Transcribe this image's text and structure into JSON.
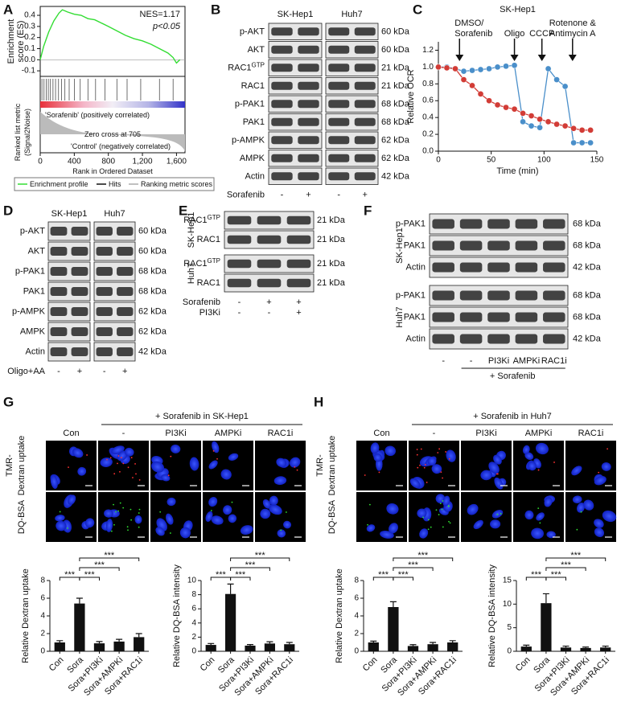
{
  "letters": [
    "A",
    "B",
    "C",
    "D",
    "E",
    "F",
    "G",
    "H"
  ],
  "chart_data": [
    {
      "type": "gsea",
      "ylabel": [
        "Enrichment",
        "score (ES)"
      ],
      "lower_ylabel": [
        "Ranked list metric",
        "(Signal2Noise)"
      ],
      "xlabel": "Rank in Ordered Dataset",
      "x": [
        0,
        40,
        100,
        160,
        220,
        260,
        320,
        400,
        480,
        560,
        640,
        720,
        800,
        900,
        1000,
        1100,
        1200,
        1300,
        1400,
        1500,
        1560,
        1600,
        1640
      ],
      "series": [
        {
          "name": "Enrichment profile",
          "color": "#33dd33",
          "values": [
            0,
            0.12,
            0.25,
            0.35,
            0.42,
            0.45,
            0.43,
            0.41,
            0.4,
            0.37,
            0.36,
            0.33,
            0.3,
            0.26,
            0.22,
            0.19,
            0.17,
            0.14,
            0.1,
            0.06,
            0.02,
            -0.03,
            0
          ]
        }
      ],
      "hits": [
        20,
        45,
        70,
        95,
        120,
        150,
        180,
        215,
        250,
        290,
        340,
        400,
        470,
        560,
        650,
        760,
        900,
        1020,
        1180,
        1400,
        1560
      ],
      "hits_name": "Hits",
      "metric_name": "Ranking metric scores",
      "xlim": [
        0,
        1700
      ],
      "xticks": [
        0,
        400,
        800,
        {
          "value": 1200,
          "label": "1,200"
        },
        {
          "value": 1600,
          "label": "1,600"
        }
      ],
      "ylim": [
        -0.15,
        0.48
      ],
      "yticks": [
        {
          "value": -0.1,
          "label": "-0.1"
        },
        {
          "value": 0,
          "label": "0.0"
        },
        0.1,
        0.2,
        0.3,
        0.4
      ],
      "annotations": {
        "nes": "NES=1.17",
        "p": "p<0.05",
        "positive": "'Sorafenib' (positively correlated)",
        "zero": "Zero cross at 705",
        "negative": "'Control' (negatively correlated)"
      }
    },
    {
      "type": "line",
      "title": "SK-Hep1",
      "xlabel": "Time (min)",
      "ylabel": "Relative OCR",
      "x": [
        0,
        8,
        16,
        24,
        32,
        40,
        48,
        56,
        64,
        72,
        80,
        88,
        96,
        104,
        112,
        120,
        128,
        136,
        144
      ],
      "series": [
        {
          "name": "DMSO/",
          "color": "#4a8fca",
          "values": [
            1.0,
            1.0,
            0.98,
            0.95,
            0.96,
            0.97,
            0.98,
            1.0,
            1.01,
            1.02,
            0.35,
            0.3,
            0.28,
            0.98,
            0.85,
            0.77,
            0.1,
            0.1,
            0.1
          ]
        },
        {
          "name": "Sorafenib",
          "color": "#d23c36",
          "values": [
            1.0,
            0.99,
            0.98,
            0.85,
            0.78,
            0.68,
            0.6,
            0.55,
            0.52,
            0.5,
            0.45,
            0.42,
            0.38,
            0.35,
            0.32,
            0.3,
            0.27,
            0.25,
            0.25
          ]
        }
      ],
      "xlim": [
        0,
        150
      ],
      "xticks": [
        0,
        50,
        100,
        150
      ],
      "ylim": [
        0,
        1.3
      ],
      "yticks": [
        {
          "value": 0,
          "label": "0.0"
        },
        0.2,
        0.4,
        0.6,
        0.8,
        {
          "value": 1,
          "label": "1.0"
        },
        1.2
      ],
      "treatments": [
        {
          "x": 20
        },
        {
          "x": 72,
          "label": [
            "Oligo"
          ]
        },
        {
          "x": 98,
          "label": [
            "CCCP"
          ]
        },
        {
          "x": 127,
          "label": [
            "Rotenone &",
            "Antimycin A"
          ]
        }
      ]
    },
    {
      "type": "bar",
      "ylabel": "Relative Dextran uptake",
      "categories": [
        "Con",
        "Sora",
        "Sora+PI3Ki",
        "Sora+AMPKi",
        "Sora+RAC1i"
      ],
      "values": [
        1.0,
        5.4,
        0.9,
        1.1,
        1.6
      ],
      "errors": [
        0.2,
        0.6,
        0.2,
        0.25,
        0.4
      ],
      "color": "#111111",
      "ylim": [
        0,
        8
      ],
      "yticks": [
        0,
        2,
        4,
        6,
        8
      ],
      "significance": [
        {
          "pair": [
            0,
            1
          ],
          "label": "***"
        },
        {
          "pair": [
            1,
            2
          ],
          "label": "***"
        },
        {
          "pair": [
            1,
            3
          ],
          "label": "***"
        },
        {
          "pair": [
            1,
            4
          ],
          "label": "***"
        }
      ]
    },
    {
      "type": "bar",
      "ylabel": "Relative DQ-BSA intensity",
      "categories": [
        "Con",
        "Sora",
        "Sora+PI3Ki",
        "Sora+AMPKi",
        "Sora+RAC1i"
      ],
      "values": [
        0.9,
        8.1,
        0.8,
        1.1,
        1.0
      ],
      "errors": [
        0.2,
        1.4,
        0.15,
        0.25,
        0.25
      ],
      "color": "#111111",
      "ylim": [
        0,
        10
      ],
      "yticks": [
        0,
        2,
        4,
        6,
        8,
        10
      ],
      "significance": [
        {
          "pair": [
            0,
            1
          ],
          "label": "***"
        },
        {
          "pair": [
            1,
            2
          ],
          "label": "***"
        },
        {
          "pair": [
            1,
            3
          ],
          "label": "***"
        },
        {
          "pair": [
            1,
            4
          ],
          "label": "***"
        }
      ]
    },
    {
      "type": "bar",
      "ylabel": "Relative Dextran uptake",
      "categories": [
        "Con",
        "Sora",
        "Sora+PI3Ki",
        "Sora+AMPKi",
        "Sora+RAC1i"
      ],
      "values": [
        1.0,
        5.0,
        0.6,
        0.8,
        1.0
      ],
      "errors": [
        0.15,
        0.6,
        0.15,
        0.2,
        0.2
      ],
      "color": "#111111",
      "ylim": [
        0,
        8
      ],
      "yticks": [
        0,
        2,
        4,
        6,
        8
      ],
      "significance": [
        {
          "pair": [
            0,
            1
          ],
          "label": "***"
        },
        {
          "pair": [
            1,
            2
          ],
          "label": "***"
        },
        {
          "pair": [
            1,
            3
          ],
          "label": "***"
        },
        {
          "pair": [
            1,
            4
          ],
          "label": "***"
        }
      ]
    },
    {
      "type": "bar",
      "ylabel": "Relative DQ-BSA intensity",
      "categories": [
        "Con",
        "Sora",
        "Sora+PI3Ki",
        "Sora+AMPKi",
        "Sora+RAC1i"
      ],
      "values": [
        1.0,
        10.2,
        0.8,
        0.7,
        0.8
      ],
      "errors": [
        0.3,
        2.0,
        0.3,
        0.2,
        0.3
      ],
      "color": "#111111",
      "ylim": [
        0,
        15
      ],
      "yticks": [
        0,
        5,
        10,
        15
      ],
      "significance": [
        {
          "pair": [
            0,
            1
          ],
          "label": "***"
        },
        {
          "pair": [
            1,
            2
          ],
          "label": "***"
        },
        {
          "pair": [
            1,
            3
          ],
          "label": "***"
        },
        {
          "pair": [
            1,
            4
          ],
          "label": "***"
        }
      ]
    }
  ],
  "blots": [
    {
      "cells": [
        "SK-Hep1",
        "Huh7"
      ],
      "blocks": [
        {
          "rows": [
            {
              "label": "p-AKT",
              "kda": "60 kDa"
            },
            {
              "label": "AKT",
              "kda": "60 kDa"
            },
            {
              "label": "RAC1",
              "sup": "GTP",
              "kda": "21 kDa"
            },
            {
              "label": "RAC1",
              "kda": "21 kDa"
            },
            {
              "label": "p-PAK1",
              "kda": "68 kDa"
            },
            {
              "label": "PAK1",
              "kda": "68 kDa"
            },
            {
              "label": "p-AMPK",
              "kda": "62 kDa"
            },
            {
              "label": "AMPK",
              "kda": "62 kDa"
            },
            {
              "label": "Actin",
              "kda": "42 kDa"
            }
          ]
        }
      ],
      "treatments": [
        {
          "label": "Sorafenib",
          "signs": [
            "-",
            "+",
            "-",
            "+"
          ]
        }
      ]
    },
    {
      "cells": [
        "SK-Hep1",
        "Huh7"
      ],
      "blocks": [
        {
          "rows": [
            {
              "label": "p-AKT",
              "kda": "60 kDa"
            },
            {
              "label": "AKT",
              "kda": "60 kDa"
            },
            {
              "label": "p-PAK1",
              "kda": "68 kDa"
            },
            {
              "label": "PAK1",
              "kda": "68 kDa"
            },
            {
              "label": "p-AMPK",
              "kda": "62 kDa"
            },
            {
              "label": "AMPK",
              "kda": "62 kDa"
            },
            {
              "label": "Actin",
              "kda": "42 kDa"
            }
          ]
        }
      ],
      "treatments": [
        {
          "label": "Oligo+AA",
          "signs": [
            "-",
            "+",
            "-",
            "+"
          ]
        }
      ]
    },
    {
      "blocks": [
        {
          "side": "SK-Hep1",
          "rows": [
            {
              "label": "RAC1",
              "sup": "GTP",
              "kda": "21 kDa"
            },
            {
              "label": "RAC1",
              "kda": "21 kDa"
            }
          ]
        },
        {
          "side": "Huh7",
          "rows": [
            {
              "label": "RAC1",
              "sup": "GTP",
              "kda": "21 kDa"
            },
            {
              "label": "RAC1",
              "kda": "21 kDa"
            }
          ]
        }
      ],
      "treatments": [
        {
          "label": "Sorafenib",
          "signs": [
            "-",
            "+",
            "+"
          ]
        },
        {
          "label": "PI3Ki",
          "signs": [
            "-",
            "-",
            "+"
          ]
        }
      ]
    },
    {
      "blocks": [
        {
          "side": "SK-Hep1",
          "rows": [
            {
              "label": "p-PAK1",
              "kda": "68 kDa"
            },
            {
              "label": "PAK1",
              "kda": "68 kDa"
            },
            {
              "label": "Actin",
              "kda": "42 kDa"
            }
          ]
        },
        {
          "side": "Huh7",
          "rows": [
            {
              "label": "p-PAK1",
              "kda": "68 kDa"
            },
            {
              "label": "PAK1",
              "kda": "68 kDa"
            },
            {
              "label": "Actin",
              "kda": "42 kDa"
            }
          ]
        }
      ],
      "treatments": [
        {
          "signs": [
            "-",
            "-",
            "PI3Ki",
            "AMPKi",
            "RAC1i"
          ]
        }
      ],
      "group_label": "+ Sorafenib"
    }
  ],
  "imaging": [
    {
      "header": "+ Sorafenib in SK-Hep1",
      "columns": [
        "Con",
        "-",
        "PI3Ki",
        "AMPKi",
        "RAC1i"
      ],
      "stain1": [
        "TMR-",
        "Dextran uptake"
      ],
      "stain2": "DQ-BSA"
    },
    {
      "header": "+ Sorafenib in Huh7",
      "columns": [
        "Con",
        "-",
        "PI3Ki",
        "AMPKi",
        "RAC1i"
      ],
      "stain1": [
        "TMR-",
        "Dextran uptake"
      ],
      "stain2": "DQ-BSA"
    }
  ]
}
